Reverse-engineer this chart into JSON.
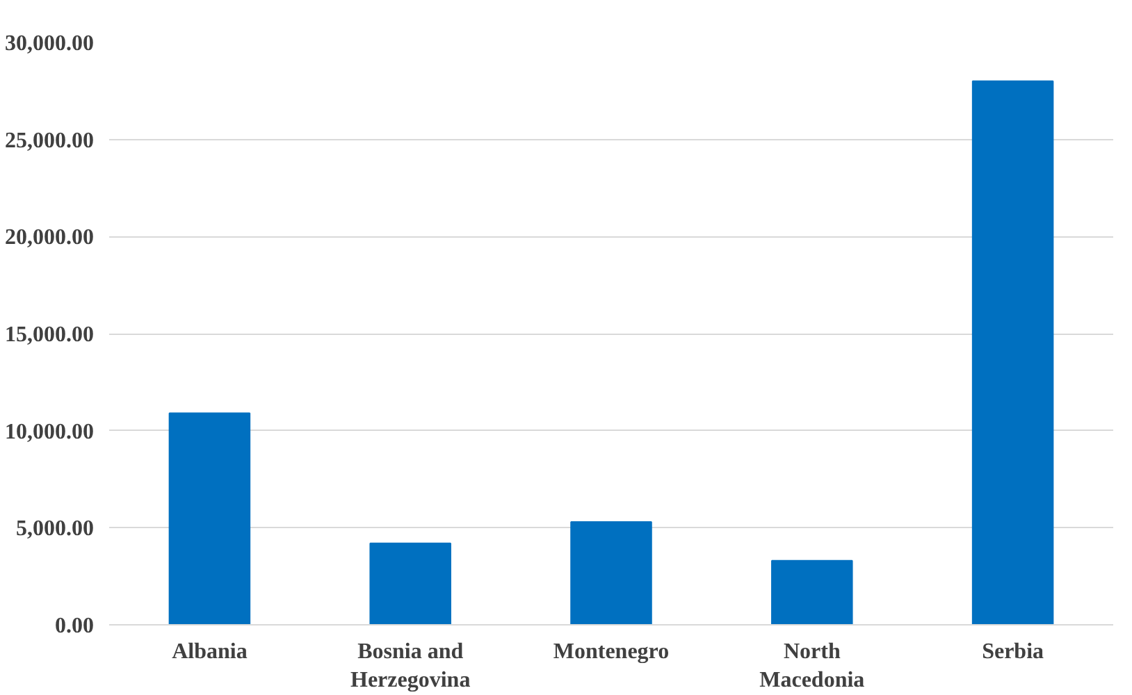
{
  "chart_data": {
    "type": "bar",
    "categories": [
      "Albania",
      "Bosnia and Herzegovina",
      "Montenegro",
      "North Macedonia",
      "Serbia"
    ],
    "values": [
      10900,
      4200,
      5300,
      3300,
      28000
    ],
    "color": "#0070c0",
    "ylim": [
      0,
      30000
    ],
    "yticks": [
      {
        "value": 0,
        "label": "0.00"
      },
      {
        "value": 5000,
        "label": "5,000.00"
      },
      {
        "value": 10000,
        "label": "10,000.00"
      },
      {
        "value": 15000,
        "label": "15,000.00"
      },
      {
        "value": 20000,
        "label": "20,000.00"
      },
      {
        "value": 25000,
        "label": "25,000.00"
      },
      {
        "value": 30000,
        "label": "30,000.00"
      }
    ],
    "grid": "y"
  }
}
